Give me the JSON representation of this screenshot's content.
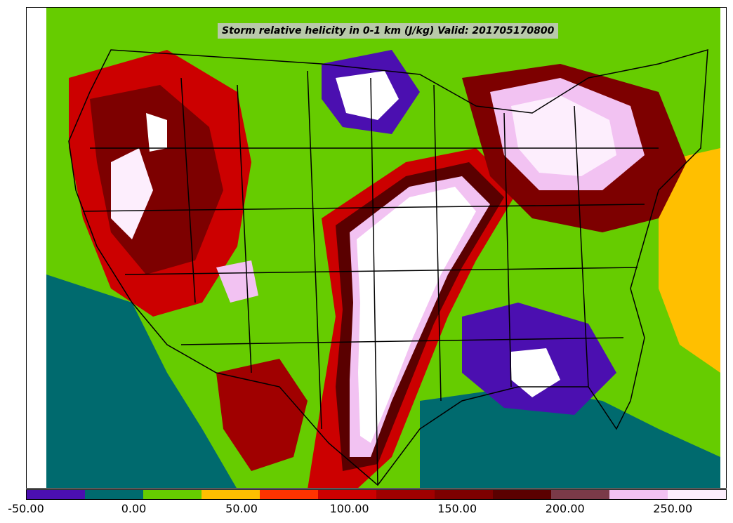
{
  "title": "Storm relative helicity in 0-1 km (J/kg) Valid: 201705170800",
  "colorbar": {
    "colors": [
      "#4b0fb0",
      "#006a6e",
      "#66cc00",
      "#ffbf00",
      "#ff3300",
      "#cc0000",
      "#a00000",
      "#7d0000",
      "#5a0000",
      "#7a3a48",
      "#f2c2f2",
      "#fdeefd"
    ],
    "ticks": [
      {
        "value": -50,
        "label": "-50.00"
      },
      {
        "value": 0,
        "label": "0.00"
      },
      {
        "value": 50,
        "label": "50.00"
      },
      {
        "value": 100,
        "label": "100.00"
      },
      {
        "value": 150,
        "label": "150.00"
      },
      {
        "value": 200,
        "label": "200.00"
      },
      {
        "value": 250,
        "label": "250.00"
      }
    ],
    "range": [
      -50,
      275
    ]
  }
}
